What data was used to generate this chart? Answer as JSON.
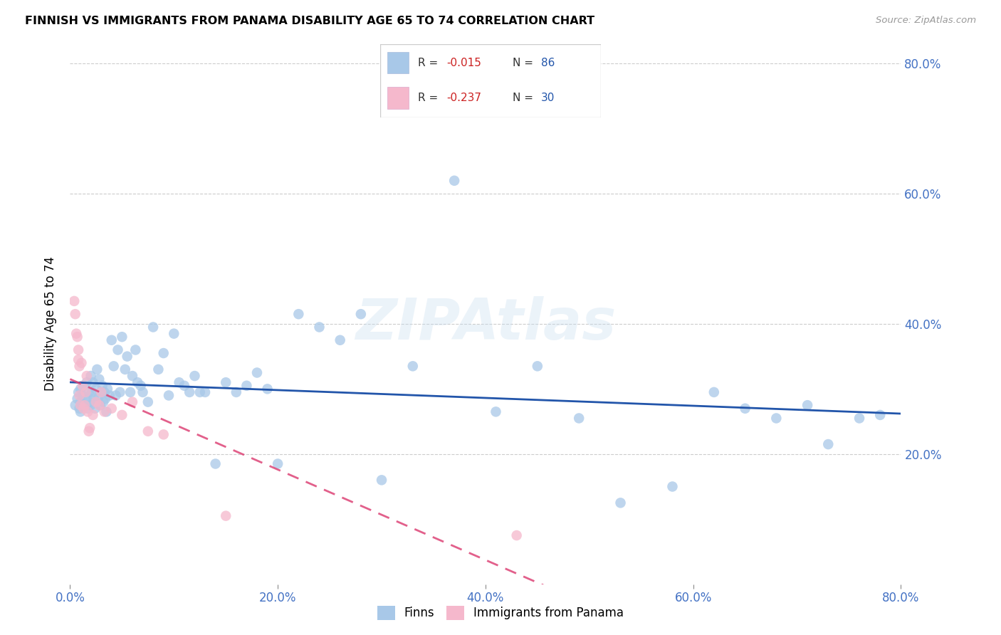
{
  "title": "FINNISH VS IMMIGRANTS FROM PANAMA DISABILITY AGE 65 TO 74 CORRELATION CHART",
  "source": "Source: ZipAtlas.com",
  "ylabel": "Disability Age 65 to 74",
  "xlim": [
    0.0,
    0.8
  ],
  "ylim": [
    0.0,
    0.8
  ],
  "xtick_vals": [
    0.0,
    0.2,
    0.4,
    0.6,
    0.8
  ],
  "xtick_labels": [
    "0.0%",
    "20.0%",
    "40.0%",
    "60.0%",
    "80.0%"
  ],
  "ytick_vals": [
    0.2,
    0.4,
    0.6,
    0.8
  ],
  "ytick_labels": [
    "20.0%",
    "40.0%",
    "60.0%",
    "80.0%"
  ],
  "finns_color": "#a8c8e8",
  "panama_color": "#f5b8cc",
  "trend_finn_color": "#2255aa",
  "trend_panama_color": "#dd4477",
  "watermark": "ZIPAtlas",
  "bottom_legend1": "Finns",
  "bottom_legend2": "Immigrants from Panama",
  "finns_x": [
    0.005,
    0.007,
    0.008,
    0.009,
    0.01,
    0.01,
    0.01,
    0.012,
    0.013,
    0.014,
    0.015,
    0.016,
    0.017,
    0.018,
    0.019,
    0.02,
    0.02,
    0.021,
    0.022,
    0.023,
    0.024,
    0.025,
    0.026,
    0.027,
    0.028,
    0.029,
    0.03,
    0.031,
    0.032,
    0.033,
    0.034,
    0.035,
    0.036,
    0.038,
    0.04,
    0.042,
    0.044,
    0.046,
    0.048,
    0.05,
    0.053,
    0.055,
    0.058,
    0.06,
    0.063,
    0.065,
    0.068,
    0.07,
    0.075,
    0.08,
    0.085,
    0.09,
    0.095,
    0.1,
    0.105,
    0.11,
    0.115,
    0.12,
    0.125,
    0.13,
    0.14,
    0.15,
    0.16,
    0.17,
    0.18,
    0.19,
    0.2,
    0.22,
    0.24,
    0.26,
    0.28,
    0.3,
    0.33,
    0.37,
    0.41,
    0.45,
    0.49,
    0.53,
    0.58,
    0.62,
    0.65,
    0.68,
    0.71,
    0.73,
    0.76,
    0.78
  ],
  "finns_y": [
    0.275,
    0.285,
    0.295,
    0.27,
    0.28,
    0.3,
    0.265,
    0.29,
    0.305,
    0.275,
    0.285,
    0.31,
    0.27,
    0.295,
    0.28,
    0.32,
    0.275,
    0.295,
    0.31,
    0.285,
    0.27,
    0.3,
    0.33,
    0.285,
    0.315,
    0.275,
    0.295,
    0.305,
    0.28,
    0.295,
    0.285,
    0.265,
    0.3,
    0.29,
    0.375,
    0.335,
    0.29,
    0.36,
    0.295,
    0.38,
    0.33,
    0.35,
    0.295,
    0.32,
    0.36,
    0.31,
    0.305,
    0.295,
    0.28,
    0.395,
    0.33,
    0.355,
    0.29,
    0.385,
    0.31,
    0.305,
    0.295,
    0.32,
    0.295,
    0.295,
    0.185,
    0.31,
    0.295,
    0.305,
    0.325,
    0.3,
    0.185,
    0.415,
    0.395,
    0.375,
    0.415,
    0.16,
    0.335,
    0.62,
    0.265,
    0.335,
    0.255,
    0.125,
    0.15,
    0.295,
    0.27,
    0.255,
    0.275,
    0.215,
    0.255,
    0.26
  ],
  "panama_x": [
    0.004,
    0.005,
    0.006,
    0.007,
    0.008,
    0.008,
    0.009,
    0.009,
    0.01,
    0.011,
    0.012,
    0.013,
    0.014,
    0.015,
    0.016,
    0.017,
    0.018,
    0.019,
    0.022,
    0.025,
    0.028,
    0.03,
    0.033,
    0.04,
    0.05,
    0.06,
    0.075,
    0.09,
    0.15,
    0.43
  ],
  "panama_y": [
    0.435,
    0.415,
    0.385,
    0.38,
    0.36,
    0.345,
    0.335,
    0.29,
    0.275,
    0.34,
    0.305,
    0.27,
    0.275,
    0.295,
    0.32,
    0.265,
    0.235,
    0.24,
    0.26,
    0.28,
    0.275,
    0.295,
    0.265,
    0.27,
    0.26,
    0.28,
    0.235,
    0.23,
    0.105,
    0.075
  ]
}
